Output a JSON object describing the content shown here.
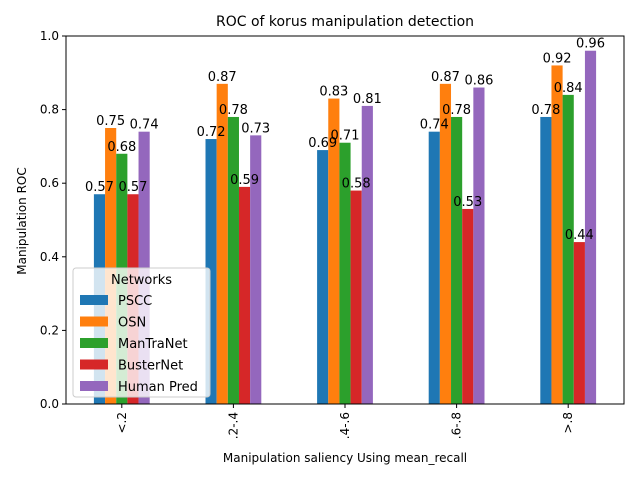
{
  "chart_data": {
    "type": "bar",
    "title": "ROC of korus manipulation detection",
    "xlabel": "Manipulation saliency Using mean_recall",
    "ylabel": "Manipulation ROC",
    "categories": [
      "<.2",
      ".2-.4",
      ".4-.6",
      ".6-.8",
      ">.8"
    ],
    "ylim": [
      0,
      1.0
    ],
    "yticks": [
      "0.0",
      "0.2",
      "0.4",
      "0.6",
      "0.8",
      "1.0"
    ],
    "grid": false,
    "legend": {
      "title": "Networks",
      "placement": "lower-left"
    },
    "series": [
      {
        "name": "PSCC",
        "color": "#1f77b4",
        "values": [
          0.57,
          0.72,
          0.69,
          0.74,
          0.78
        ],
        "labels": [
          "0.57",
          "0.72",
          "0.69",
          "0.74",
          "0.78"
        ]
      },
      {
        "name": "OSN",
        "color": "#ff7f0e",
        "values": [
          0.75,
          0.87,
          0.83,
          0.87,
          0.92
        ],
        "labels": [
          "0.75",
          "0.87",
          "0.83",
          "0.87",
          "0.92"
        ]
      },
      {
        "name": "ManTraNet",
        "color": "#2ca02c",
        "values": [
          0.68,
          0.78,
          0.71,
          0.78,
          0.84
        ],
        "labels": [
          "0.68",
          "0.78",
          "0.71",
          "0.78",
          "0.84"
        ]
      },
      {
        "name": "BusterNet",
        "color": "#d62728",
        "values": [
          0.57,
          0.59,
          0.58,
          0.53,
          0.44
        ],
        "labels": [
          "0.57",
          "0.59",
          "0.58",
          "0.53",
          "0.44"
        ]
      },
      {
        "name": "Human Pred",
        "color": "#9467bd",
        "values": [
          0.74,
          0.73,
          0.81,
          0.86,
          0.96
        ],
        "labels": [
          "0.74",
          "0.73",
          "0.81",
          "0.86",
          "0.96"
        ]
      }
    ]
  }
}
